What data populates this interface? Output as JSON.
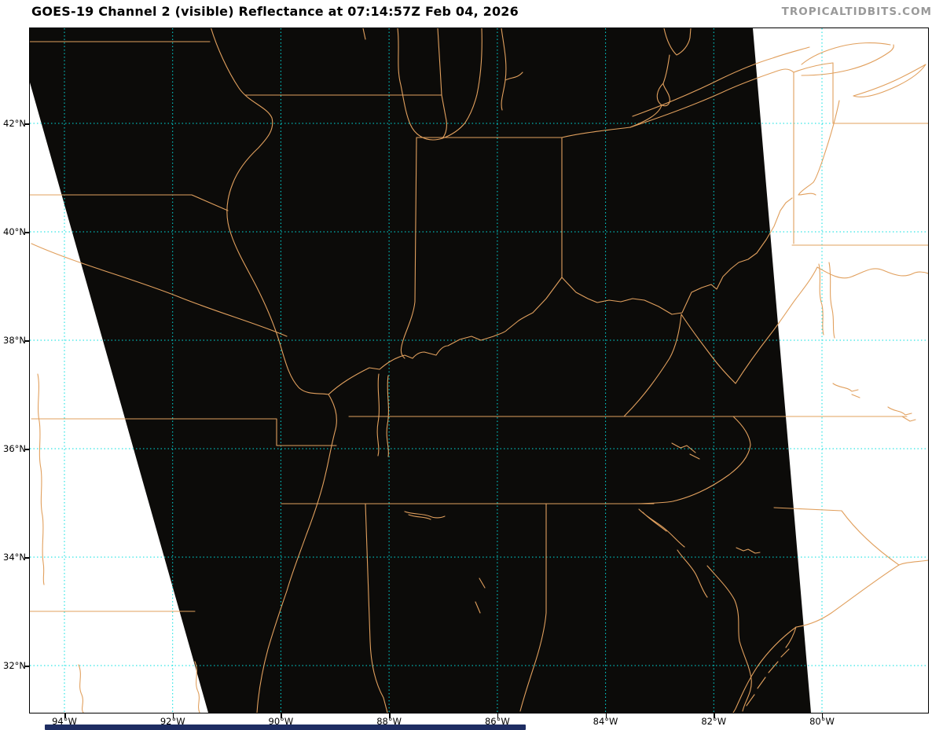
{
  "header": {
    "title": "GOES-19 Channel 2 (visible) Reflectance at 07:14:57Z Feb 04, 2026",
    "watermark": "TROPICALTIDBITS.COM"
  },
  "satellite": {
    "name": "GOES-19",
    "channel": "Channel 2 (visible)",
    "product": "Reflectance",
    "valid_time": "07:14:57Z Feb 04, 2026"
  },
  "axes": {
    "latitudes": [
      "42°N",
      "40°N",
      "38°N",
      "36°N",
      "34°N",
      "32°N"
    ],
    "longitudes": [
      "94°W",
      "92°W",
      "90°W",
      "88°W",
      "86°W",
      "84°W",
      "82°W",
      "80°W"
    ]
  },
  "legend": {
    "gridline_style": "dotted",
    "map_layers": [
      "satellite-swath",
      "state-borders",
      "rivers",
      "coastlines",
      "lat-lon-grid"
    ]
  },
  "colors": {
    "border_orange": "#e1a05e",
    "grid_cyan": "#00dfdf",
    "swath_black": "#0c0b09",
    "watermark_gray": "#999999",
    "loopbar_navy": "#1e2d62"
  }
}
